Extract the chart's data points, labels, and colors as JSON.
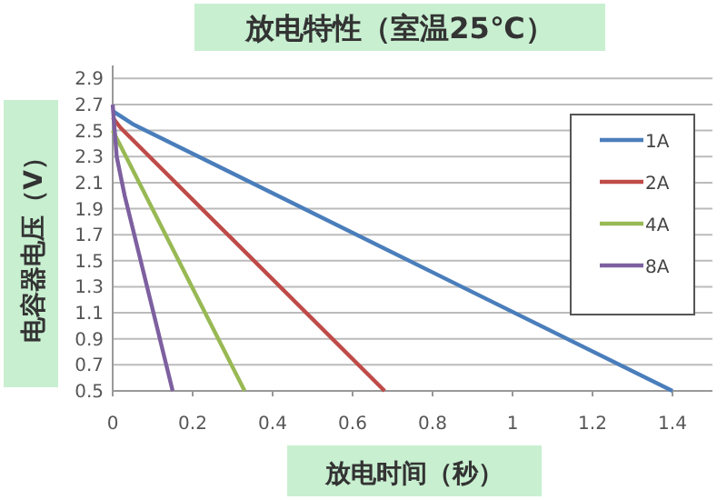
{
  "chart_data": {
    "type": "line",
    "title": "放电特性（室温25℃）",
    "xlabel": "放电时间（秒）",
    "ylabel": "电容器电压（V）",
    "xlim": [
      0,
      1.5
    ],
    "xticks": [
      0,
      0.2,
      0.4,
      0.6,
      0.8,
      1,
      1.2,
      1.4
    ],
    "ylim": [
      0.5,
      3.0
    ],
    "yticks": [
      0.5,
      0.7,
      0.9,
      1.1,
      1.3,
      1.5,
      1.7,
      1.9,
      2.1,
      2.3,
      2.5,
      2.7,
      2.9
    ],
    "grid": "y",
    "legend": "top right",
    "marker": "none",
    "line_style": "solid",
    "series": [
      {
        "name": "1A",
        "color": "#4a7ebb",
        "x": [
          0,
          0.05,
          1.4
        ],
        "values": [
          2.65,
          2.55,
          0.5
        ]
      },
      {
        "name": "2A",
        "color": "#be4b48",
        "x": [
          0,
          0.02,
          0.68
        ],
        "values": [
          2.6,
          2.52,
          0.5
        ]
      },
      {
        "name": "4A",
        "color": "#98b954",
        "x": [
          0,
          0.02,
          0.33
        ],
        "values": [
          2.5,
          2.38,
          0.5
        ]
      },
      {
        "name": "8A",
        "color": "#7d60a0",
        "x": [
          0,
          0.01,
          0.03,
          0.15
        ],
        "values": [
          2.7,
          2.3,
          2.0,
          0.5
        ]
      }
    ]
  }
}
